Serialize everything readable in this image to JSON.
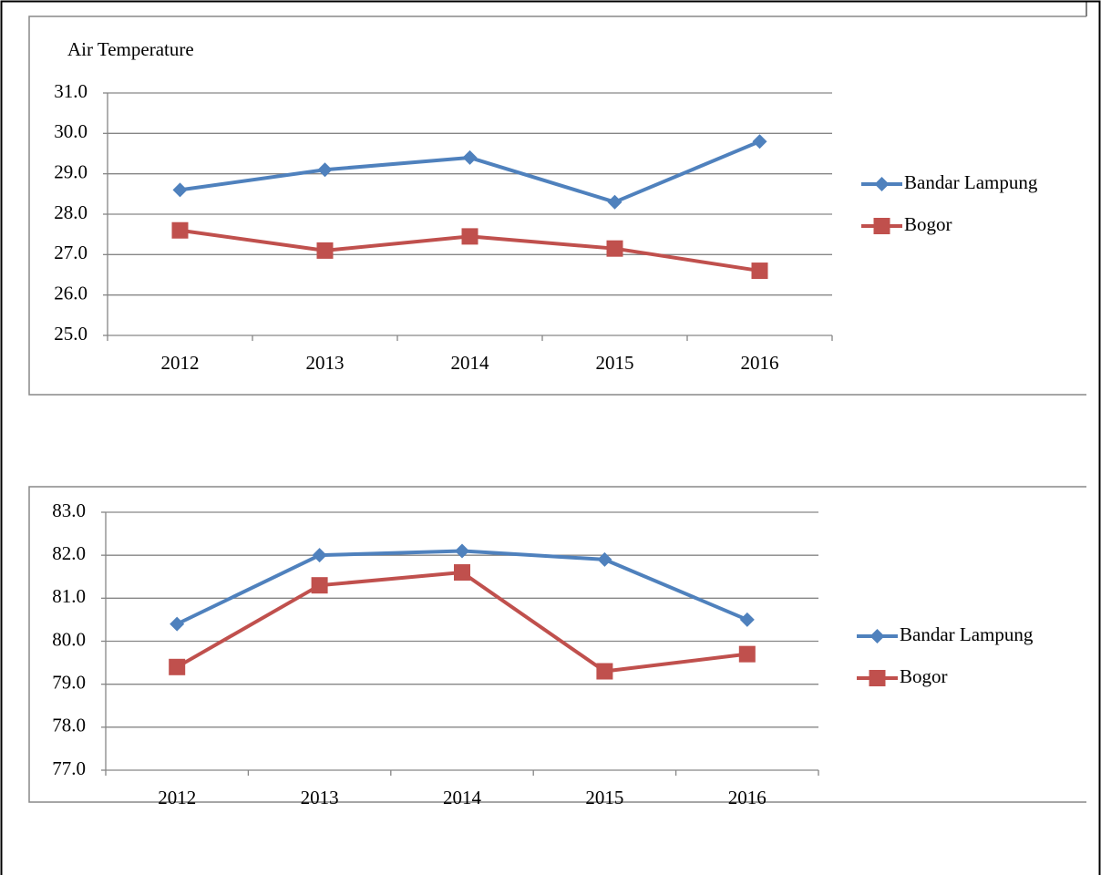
{
  "chart_data": [
    {
      "type": "line",
      "title": "Air Temperature",
      "categories": [
        "2012",
        "2013",
        "2014",
        "2015",
        "2016"
      ],
      "series": [
        {
          "name": "Bandar Lampung",
          "color": "#4f81bd",
          "marker": "diamond",
          "values": [
            28.6,
            29.1,
            29.4,
            28.3,
            29.8
          ]
        },
        {
          "name": "Bogor",
          "color": "#c0504d",
          "marker": "square",
          "values": [
            27.6,
            27.1,
            27.45,
            27.15,
            26.6
          ]
        }
      ],
      "ylim": [
        25,
        31
      ],
      "yticks": [
        {
          "value": 25,
          "label": "25.0"
        },
        {
          "value": 26,
          "label": "26.0"
        },
        {
          "value": 27,
          "label": "27.0"
        },
        {
          "value": 28,
          "label": "28.0"
        },
        {
          "value": 29,
          "label": "29.0"
        },
        {
          "value": 30,
          "label": "30.0"
        },
        {
          "value": 31,
          "label": "31.0"
        }
      ],
      "grid": true,
      "legend": "right"
    },
    {
      "type": "line",
      "categories": [
        "2012",
        "2013",
        "2014",
        "2015",
        "2016"
      ],
      "series": [
        {
          "name": "Bandar Lampung",
          "color": "#4f81bd",
          "marker": "diamond",
          "values": [
            80.4,
            82.0,
            82.1,
            81.9,
            80.5
          ]
        },
        {
          "name": "Bogor",
          "color": "#c0504d",
          "marker": "square",
          "values": [
            79.4,
            81.3,
            81.6,
            79.3,
            79.7
          ]
        }
      ],
      "ylim": [
        77,
        83
      ],
      "yticks": [
        {
          "value": 77,
          "label": "77.0"
        },
        {
          "value": 78,
          "label": "78.0"
        },
        {
          "value": 79,
          "label": "79.0"
        },
        {
          "value": 80,
          "label": "80.0"
        },
        {
          "value": 81,
          "label": "81.0"
        },
        {
          "value": 82,
          "label": "82.0"
        },
        {
          "value": 83,
          "label": "83.0"
        }
      ],
      "grid": true,
      "legend": "right"
    }
  ]
}
